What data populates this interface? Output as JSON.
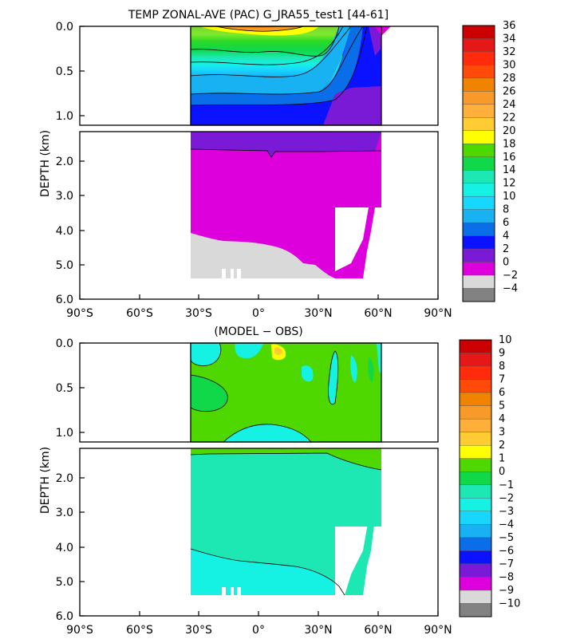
{
  "chart_data": [
    {
      "type": "heatmap",
      "title": "TEMP ZONAL-AVE (PAC) G_JRA55_test1 [44-61]",
      "ylabel": "DEPTH (km)",
      "xticks": [
        "90°S",
        "60°S",
        "30°S",
        "0°",
        "30°N",
        "60°N",
        "90°N"
      ],
      "yticks": [
        "0.0",
        "0.5",
        "1.0",
        "2.0",
        "3.0",
        "4.0",
        "5.0",
        "6.0"
      ],
      "x_range": [
        -90,
        90
      ],
      "y_range_km": [
        0,
        6
      ],
      "upper_panel_depth_km": [
        0,
        1.1
      ],
      "lower_panel_depth_km": [
        1.1,
        6
      ],
      "colorbar": {
        "levels": [
          "36",
          "34",
          "32",
          "30",
          "28",
          "26",
          "24",
          "22",
          "20",
          "18",
          "16",
          "14",
          "12",
          "10",
          "8",
          "6",
          "4",
          "2",
          "0",
          "−2",
          "−4"
        ],
        "colors": [
          "#cc0000",
          "#e61717",
          "#ff2b0a",
          "#ff4a0a",
          "#f08300",
          "#f79a2a",
          "#ffb03b",
          "#ffcc33",
          "#ffff00",
          "#4fd800",
          "#11d849",
          "#1de8b3",
          "#15f2e4",
          "#18d7ff",
          "#18b2f2",
          "#0a6ee8",
          "#0a12ff",
          "#7a1ad6",
          "#dd00dd",
          "#d9d9d9",
          "#828282"
        ]
      }
    },
    {
      "type": "heatmap",
      "title": "(MODEL − OBS)",
      "ylabel": "DEPTH (km)",
      "xticks": [
        "90°S",
        "60°S",
        "30°S",
        "0°",
        "30°N",
        "60°N",
        "90°N"
      ],
      "yticks": [
        "0.0",
        "0.5",
        "1.0",
        "2.0",
        "3.0",
        "4.0",
        "5.0",
        "6.0"
      ],
      "x_range": [
        -90,
        90
      ],
      "y_range_km": [
        0,
        6
      ],
      "colorbar": {
        "levels": [
          "10",
          "9",
          "8",
          "7",
          "6",
          "5",
          "4",
          "3",
          "2",
          "1",
          "0",
          "−1",
          "−2",
          "−3",
          "−4",
          "−5",
          "−6",
          "−7",
          "−8",
          "−9",
          "−10"
        ],
        "colors": [
          "#cc0000",
          "#e61717",
          "#ff2b0a",
          "#ff4a0a",
          "#f08300",
          "#f79a2a",
          "#ffb03b",
          "#ffcc33",
          "#ffff00",
          "#4fd800",
          "#11d849",
          "#1de8b3",
          "#15f2e4",
          "#18d7ff",
          "#18b2f2",
          "#0a6ee8",
          "#0a12ff",
          "#7a1ad6",
          "#dd00dd",
          "#d9d9d9",
          "#828282"
        ]
      }
    }
  ]
}
